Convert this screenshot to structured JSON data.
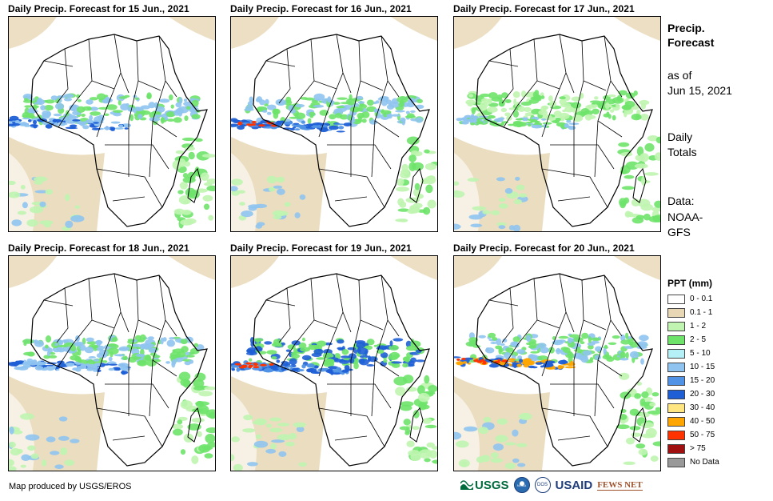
{
  "panels": [
    {
      "title": "Daily Precip. Forecast for 15 Jun., 2021"
    },
    {
      "title": "Daily Precip. Forecast for 16 Jun., 2021"
    },
    {
      "title": "Daily Precip. Forecast for 17 Jun., 2021"
    },
    {
      "title": "Daily Precip. Forecast for 18 Jun., 2021"
    },
    {
      "title": "Daily Precip. Forecast for 19 Jun., 2021"
    },
    {
      "title": "Daily Precip. Forecast for 20 Jun., 2021"
    }
  ],
  "sidebar": {
    "title": "Precip. Forecast",
    "as_of_label": "as of",
    "as_of_date": "Jun 15, 2021",
    "totals_label": "Daily Totals",
    "data_label": "Data:",
    "data_source": "NOAA-GFS"
  },
  "legend": {
    "title": "PPT (mm)",
    "items": [
      {
        "label": "0 - 0.1",
        "color": "#ffffff"
      },
      {
        "label": "0.1 - 1",
        "color": "#e8d7b4"
      },
      {
        "label": "1 - 2",
        "color": "#bff5b0"
      },
      {
        "label": "2 - 5",
        "color": "#6ee36a"
      },
      {
        "label": "5 - 10",
        "color": "#b4f0f5"
      },
      {
        "label": "10 - 15",
        "color": "#8fc4f0"
      },
      {
        "label": "15 - 20",
        "color": "#4f92e6"
      },
      {
        "label": "20 - 30",
        "color": "#1f5fd6"
      },
      {
        "label": "30 - 40",
        "color": "#ffe680"
      },
      {
        "label": "40 - 50",
        "color": "#ffa500"
      },
      {
        "label": "50 - 75",
        "color": "#ff3300"
      },
      {
        "label": "> 75",
        "color": "#a01010"
      },
      {
        "label": "No Data",
        "color": "#999999"
      }
    ]
  },
  "footer": {
    "credit": "Map produced by USGS/EROS",
    "logos": {
      "usgs": "USGS",
      "noaa": "NOAA",
      "seal": "DOS",
      "usaid": "USAID",
      "fews": "FEWS NET"
    }
  }
}
